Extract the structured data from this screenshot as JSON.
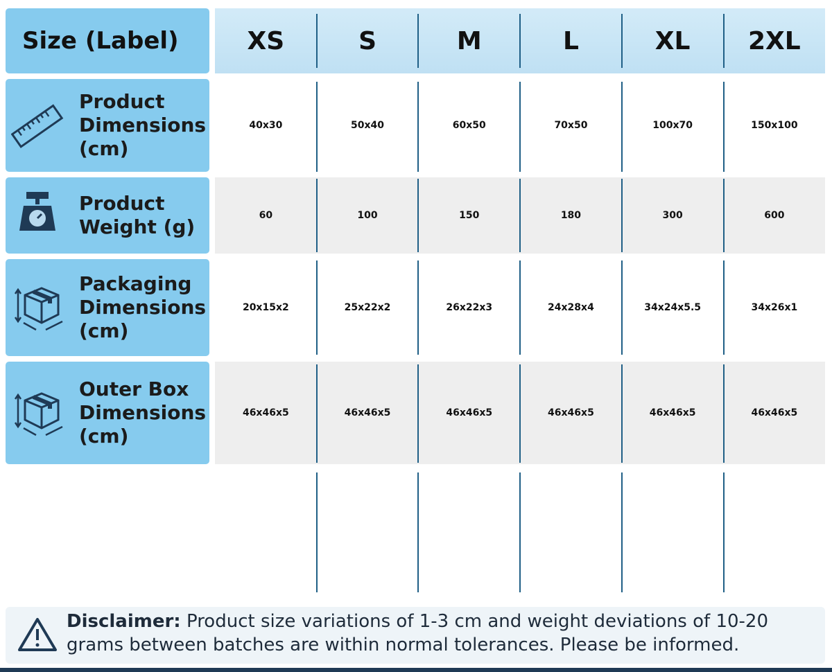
{
  "table": {
    "header": {
      "label": "Size (Label)",
      "sizes": [
        "XS",
        "S",
        "M",
        "L",
        "XL",
        "2XL"
      ]
    },
    "rows": [
      {
        "label_lines": [
          "Product",
          "Dimensions",
          "(cm)"
        ],
        "values": [
          "40x30",
          "50x40",
          "60x50",
          "70x50",
          "100x70",
          "150x100"
        ]
      },
      {
        "label_lines": [
          "Product",
          "Weight (g)"
        ],
        "values": [
          "60",
          "100",
          "150",
          "180",
          "300",
          "600"
        ]
      },
      {
        "label_lines": [
          "Packaging",
          "Dimensions",
          "(cm)"
        ],
        "values": [
          "20x15x2",
          "25x22x2",
          "26x22x3",
          "24x28x4",
          "34x24x5.5",
          "34x26x1"
        ]
      },
      {
        "label_lines": [
          "Outer Box",
          "Dimensions",
          "(cm)"
        ],
        "values": [
          "46x46x5",
          "46x46x5",
          "46x46x5",
          "46x46x5",
          "46x46x5",
          "46x46x5"
        ]
      }
    ]
  },
  "disclaimer": {
    "title": "Disclaimer:",
    "text": "Product size variations of 1-3 cm and weight deviations of 10-20 grams between batches are within normal tolerances. Please be informed."
  }
}
